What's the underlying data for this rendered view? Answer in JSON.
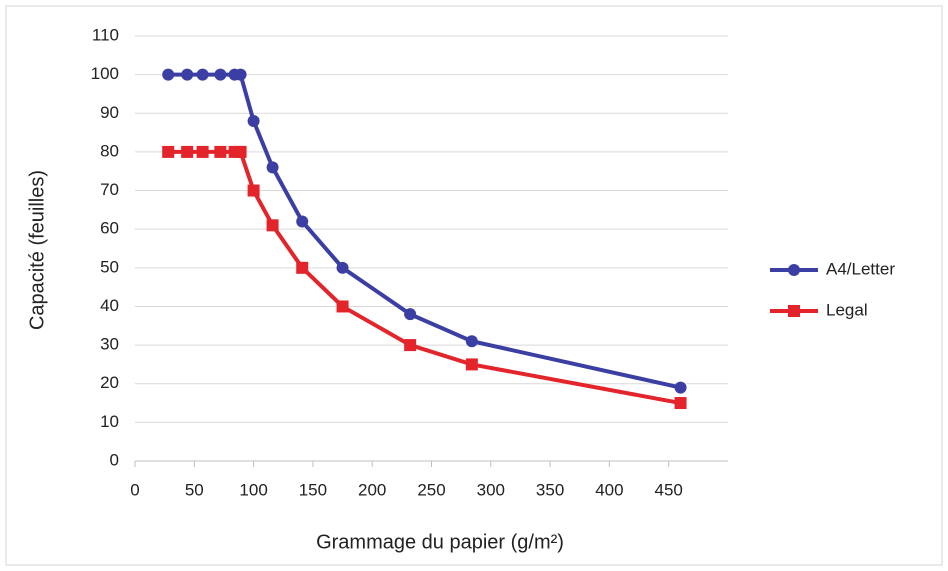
{
  "chart_data": {
    "type": "line",
    "x_label": "Grammage du papier (g/m²)",
    "y_label": "Capacité (feuilles)",
    "x": [
      28,
      44,
      57,
      72,
      84,
      89,
      100,
      116,
      141,
      175,
      232,
      284,
      460
    ],
    "series": [
      {
        "name": "A4/Letter",
        "color": "#3b3fa3",
        "marker": "circle",
        "values": [
          100,
          100,
          100,
          100,
          100,
          100,
          88,
          76,
          62,
          50,
          38,
          31,
          19
        ]
      },
      {
        "name": "Legal",
        "color": "#e3242b",
        "marker": "square",
        "values": [
          80,
          80,
          80,
          80,
          80,
          80,
          70,
          61,
          50,
          40,
          30,
          25,
          15
        ]
      }
    ],
    "xlim": [
      0,
      500
    ],
    "xticks": [
      0,
      50,
      100,
      150,
      200,
      250,
      300,
      350,
      400,
      450
    ],
    "ylim": [
      0,
      110
    ],
    "yticks": [
      0,
      10,
      20,
      30,
      40,
      50,
      60,
      70,
      80,
      90,
      100,
      110
    ],
    "grid": true,
    "legend": "right"
  }
}
